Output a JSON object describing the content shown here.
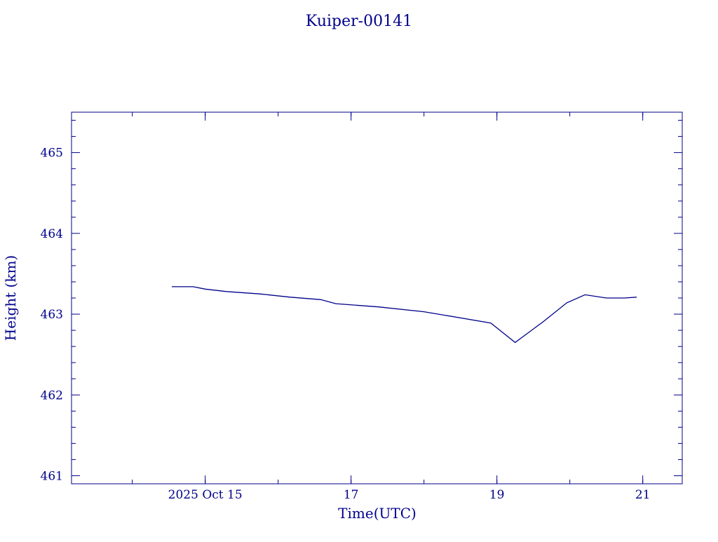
{
  "chart_data": {
    "type": "line",
    "title": "Kuiper-00141",
    "xlabel": "Time(UTC)",
    "ylabel": "Height (km)",
    "color": "#00008b",
    "grid": false,
    "xlim": [
      "2025-10-13T04:00",
      "2025-10-21T13:00"
    ],
    "ylim": [
      460.9,
      465.5
    ],
    "x_ticks": [
      {
        "x": "2025-10-15T00:00",
        "label": "2025 Oct 15"
      },
      {
        "x": "2025-10-17T00:00",
        "label": "17"
      },
      {
        "x": "2025-10-19T00:00",
        "label": "19"
      },
      {
        "x": "2025-10-21T00:00",
        "label": "21"
      }
    ],
    "y_ticks": [
      461,
      462,
      463,
      464,
      465
    ],
    "series": [
      {
        "x": [
          "2025-10-14T13:00",
          "2025-10-14T20:00",
          "2025-10-15T00:00",
          "2025-10-15T07:00",
          "2025-10-15T18:00",
          "2025-10-16T04:00",
          "2025-10-16T14:00",
          "2025-10-16T19:00",
          "2025-10-17T09:00",
          "2025-10-18T00:00",
          "2025-10-18T22:00",
          "2025-10-19T06:00",
          "2025-10-19T15:00",
          "2025-10-19T23:00",
          "2025-10-20T05:00",
          "2025-10-20T12:00",
          "2025-10-20T18:00",
          "2025-10-20T22:00"
        ],
        "values": [
          463.34,
          463.34,
          463.31,
          463.28,
          463.25,
          463.21,
          463.18,
          463.13,
          463.09,
          463.03,
          462.89,
          462.65,
          462.9,
          463.14,
          463.24,
          463.2,
          463.2,
          463.21
        ]
      }
    ]
  }
}
